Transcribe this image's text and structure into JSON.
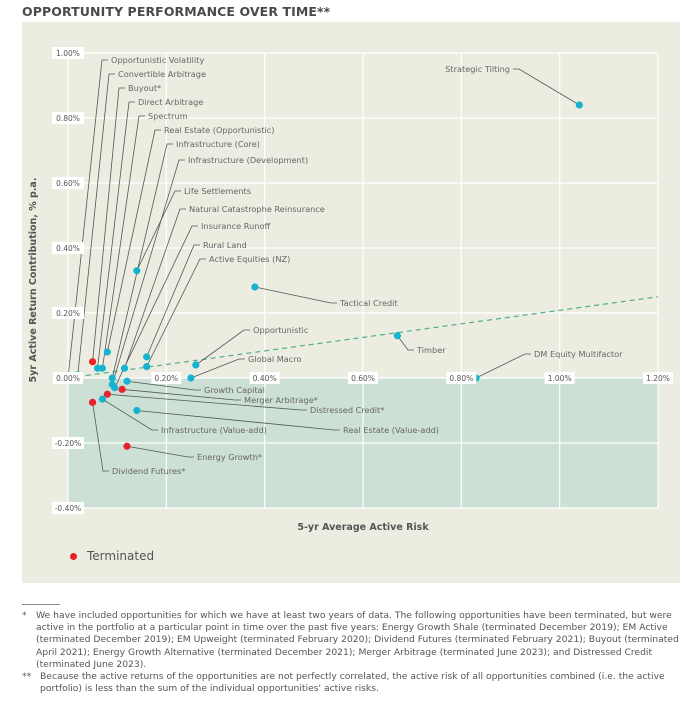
{
  "title": "OPPORTUNITY PERFORMANCE OVER TIME**",
  "legend": {
    "label": "Terminated",
    "color": "#e8222a"
  },
  "colors": {
    "active": "#16b3d0",
    "terminated": "#e8222a",
    "trend": "#4caf8a",
    "upper_bg": "#ecede0",
    "lower_bg": "#cde0d5"
  },
  "chart_data": {
    "type": "scatter",
    "title": "OPPORTUNITY PERFORMANCE OVER TIME**",
    "xlabel": "5-yr Average Active Risk",
    "ylabel": "5yr Active Return Contribution, % p.a.",
    "xlim": [
      0,
      1.2
    ],
    "ylim": [
      -0.4,
      1.0
    ],
    "x_ticks": [
      "0.00%",
      "0.20%",
      "0.40%",
      "0.60%",
      "0.80%",
      "1.00%",
      "1.20%"
    ],
    "x_tick_values": [
      0,
      0.2,
      0.4,
      0.6,
      0.8,
      1.0,
      1.2
    ],
    "y_ticks": [
      "1.00%",
      "0.80%",
      "0.60%",
      "0.40%",
      "0.20%",
      "0.00%",
      "-0.20%",
      "-0.40%"
    ],
    "y_tick_values": [
      1.0,
      0.8,
      0.6,
      0.4,
      0.2,
      0.0,
      -0.2,
      -0.4
    ],
    "grid": true,
    "legend_position": "bottom-left",
    "trend_line": {
      "x": [
        0,
        1.2
      ],
      "y": [
        0,
        0.25
      ],
      "style": "dashed"
    },
    "points": [
      {
        "name": "Opportunistic Volatility",
        "x": 0.0,
        "y": 0.0,
        "terminated": false
      },
      {
        "name": "Convertible Arbitrage",
        "x": 0.02,
        "y": 0.01,
        "terminated": false
      },
      {
        "name": "Buyout*",
        "x": 0.05,
        "y": 0.05,
        "terminated": true
      },
      {
        "name": "Direct Arbitrage",
        "x": 0.06,
        "y": 0.03,
        "terminated": false
      },
      {
        "name": "Spectrum",
        "x": 0.07,
        "y": 0.03,
        "terminated": false
      },
      {
        "name": "Real Estate (Opportunistic)",
        "x": 0.08,
        "y": 0.08,
        "terminated": false
      },
      {
        "name": "Infrastructure (Core)",
        "x": 0.09,
        "y": 0.0,
        "terminated": false
      },
      {
        "name": "Infrastructure (Development)",
        "x": 0.09,
        "y": -0.02,
        "terminated": false
      },
      {
        "name": "Life Settlements",
        "x": 0.14,
        "y": 0.33,
        "terminated": false
      },
      {
        "name": "Natural Catastrophe Reinsurance",
        "x": 0.115,
        "y": 0.03,
        "terminated": false
      },
      {
        "name": "Insurance Runoff",
        "x": 0.095,
        "y": -0.03,
        "terminated": false
      },
      {
        "name": "Rural Land",
        "x": 0.16,
        "y": 0.065,
        "terminated": false
      },
      {
        "name": "Active Equities (NZ)",
        "x": 0.16,
        "y": 0.035,
        "terminated": false
      },
      {
        "name": "Opportunistic",
        "x": 0.26,
        "y": 0.04,
        "terminated": false
      },
      {
        "name": "Global Macro",
        "x": 0.25,
        "y": 0.0,
        "terminated": false
      },
      {
        "name": "Growth Capital",
        "x": 0.12,
        "y": -0.01,
        "terminated": false
      },
      {
        "name": "Merger Arbitrage*",
        "x": 0.11,
        "y": -0.035,
        "terminated": true
      },
      {
        "name": "Distressed Credit*",
        "x": 0.08,
        "y": -0.05,
        "terminated": true
      },
      {
        "name": "Infrastructure (Value-add)",
        "x": 0.07,
        "y": -0.065,
        "terminated": false
      },
      {
        "name": "Real Estate (Value-add)",
        "x": 0.14,
        "y": -0.1,
        "terminated": false
      },
      {
        "name": "Dividend Futures*",
        "x": 0.05,
        "y": -0.075,
        "terminated": true
      },
      {
        "name": "Energy Growth*",
        "x": 0.12,
        "y": -0.21,
        "terminated": true
      },
      {
        "name": "Tactical Credit",
        "x": 0.38,
        "y": 0.28,
        "terminated": false
      },
      {
        "name": "Timber",
        "x": 0.67,
        "y": 0.13,
        "terminated": false
      },
      {
        "name": "DM Equity Multifactor",
        "x": 0.83,
        "y": 0.0,
        "terminated": false
      },
      {
        "name": "Strategic Tilting",
        "x": 1.04,
        "y": 0.84,
        "terminated": false
      }
    ]
  },
  "footnotes": [
    {
      "mark": "*",
      "text": "We have included opportunities for which we have at least two years of data. The following opportunities have been terminated, but were active in the portfolio at a particular point in time over the past five years: Energy Growth Shale (terminated December 2019); EM Active (terminated December 2019); EM Upweight (terminated February 2020); Dividend Futures (terminated February 2021); Buyout (terminated April 2021); Energy Growth Alternative (terminated December 2021); Merger Arbitrage (terminated June 2023); and Distressed Credit (terminated June 2023)."
    },
    {
      "mark": "**",
      "text": "Because the active returns of the opportunities are not perfectly correlated, the active risk of all opportunities combined (i.e. the active portfolio) is less than the sum of the individual opportunities' active risks."
    }
  ]
}
